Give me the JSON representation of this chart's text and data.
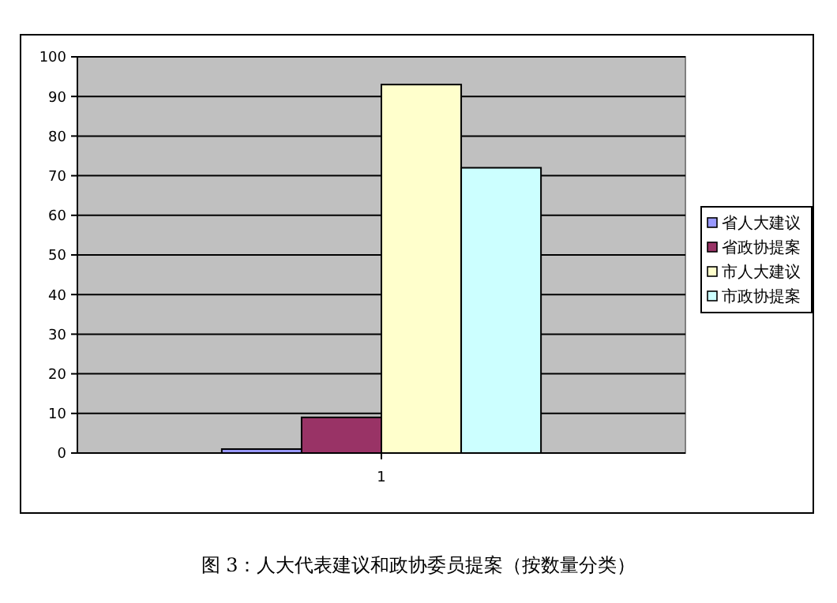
{
  "chart_data": {
    "type": "bar",
    "title": "图 3：人大代表建议和政协委员提案（按数量分类）",
    "categories": [
      "1"
    ],
    "series": [
      {
        "name": "省人大建议",
        "color": "#9999ff",
        "values": [
          1
        ]
      },
      {
        "name": "省政协提案",
        "color": "#993366",
        "values": [
          9
        ]
      },
      {
        "name": "市人大建议",
        "color": "#ffffcc",
        "values": [
          93
        ]
      },
      {
        "name": "市政协提案",
        "color": "#ccffff",
        "values": [
          72
        ]
      }
    ],
    "ylim": [
      0,
      100
    ],
    "yticks": [
      0,
      10,
      20,
      30,
      40,
      50,
      60,
      70,
      80,
      90,
      100
    ],
    "grid": "y",
    "legend": "right"
  }
}
